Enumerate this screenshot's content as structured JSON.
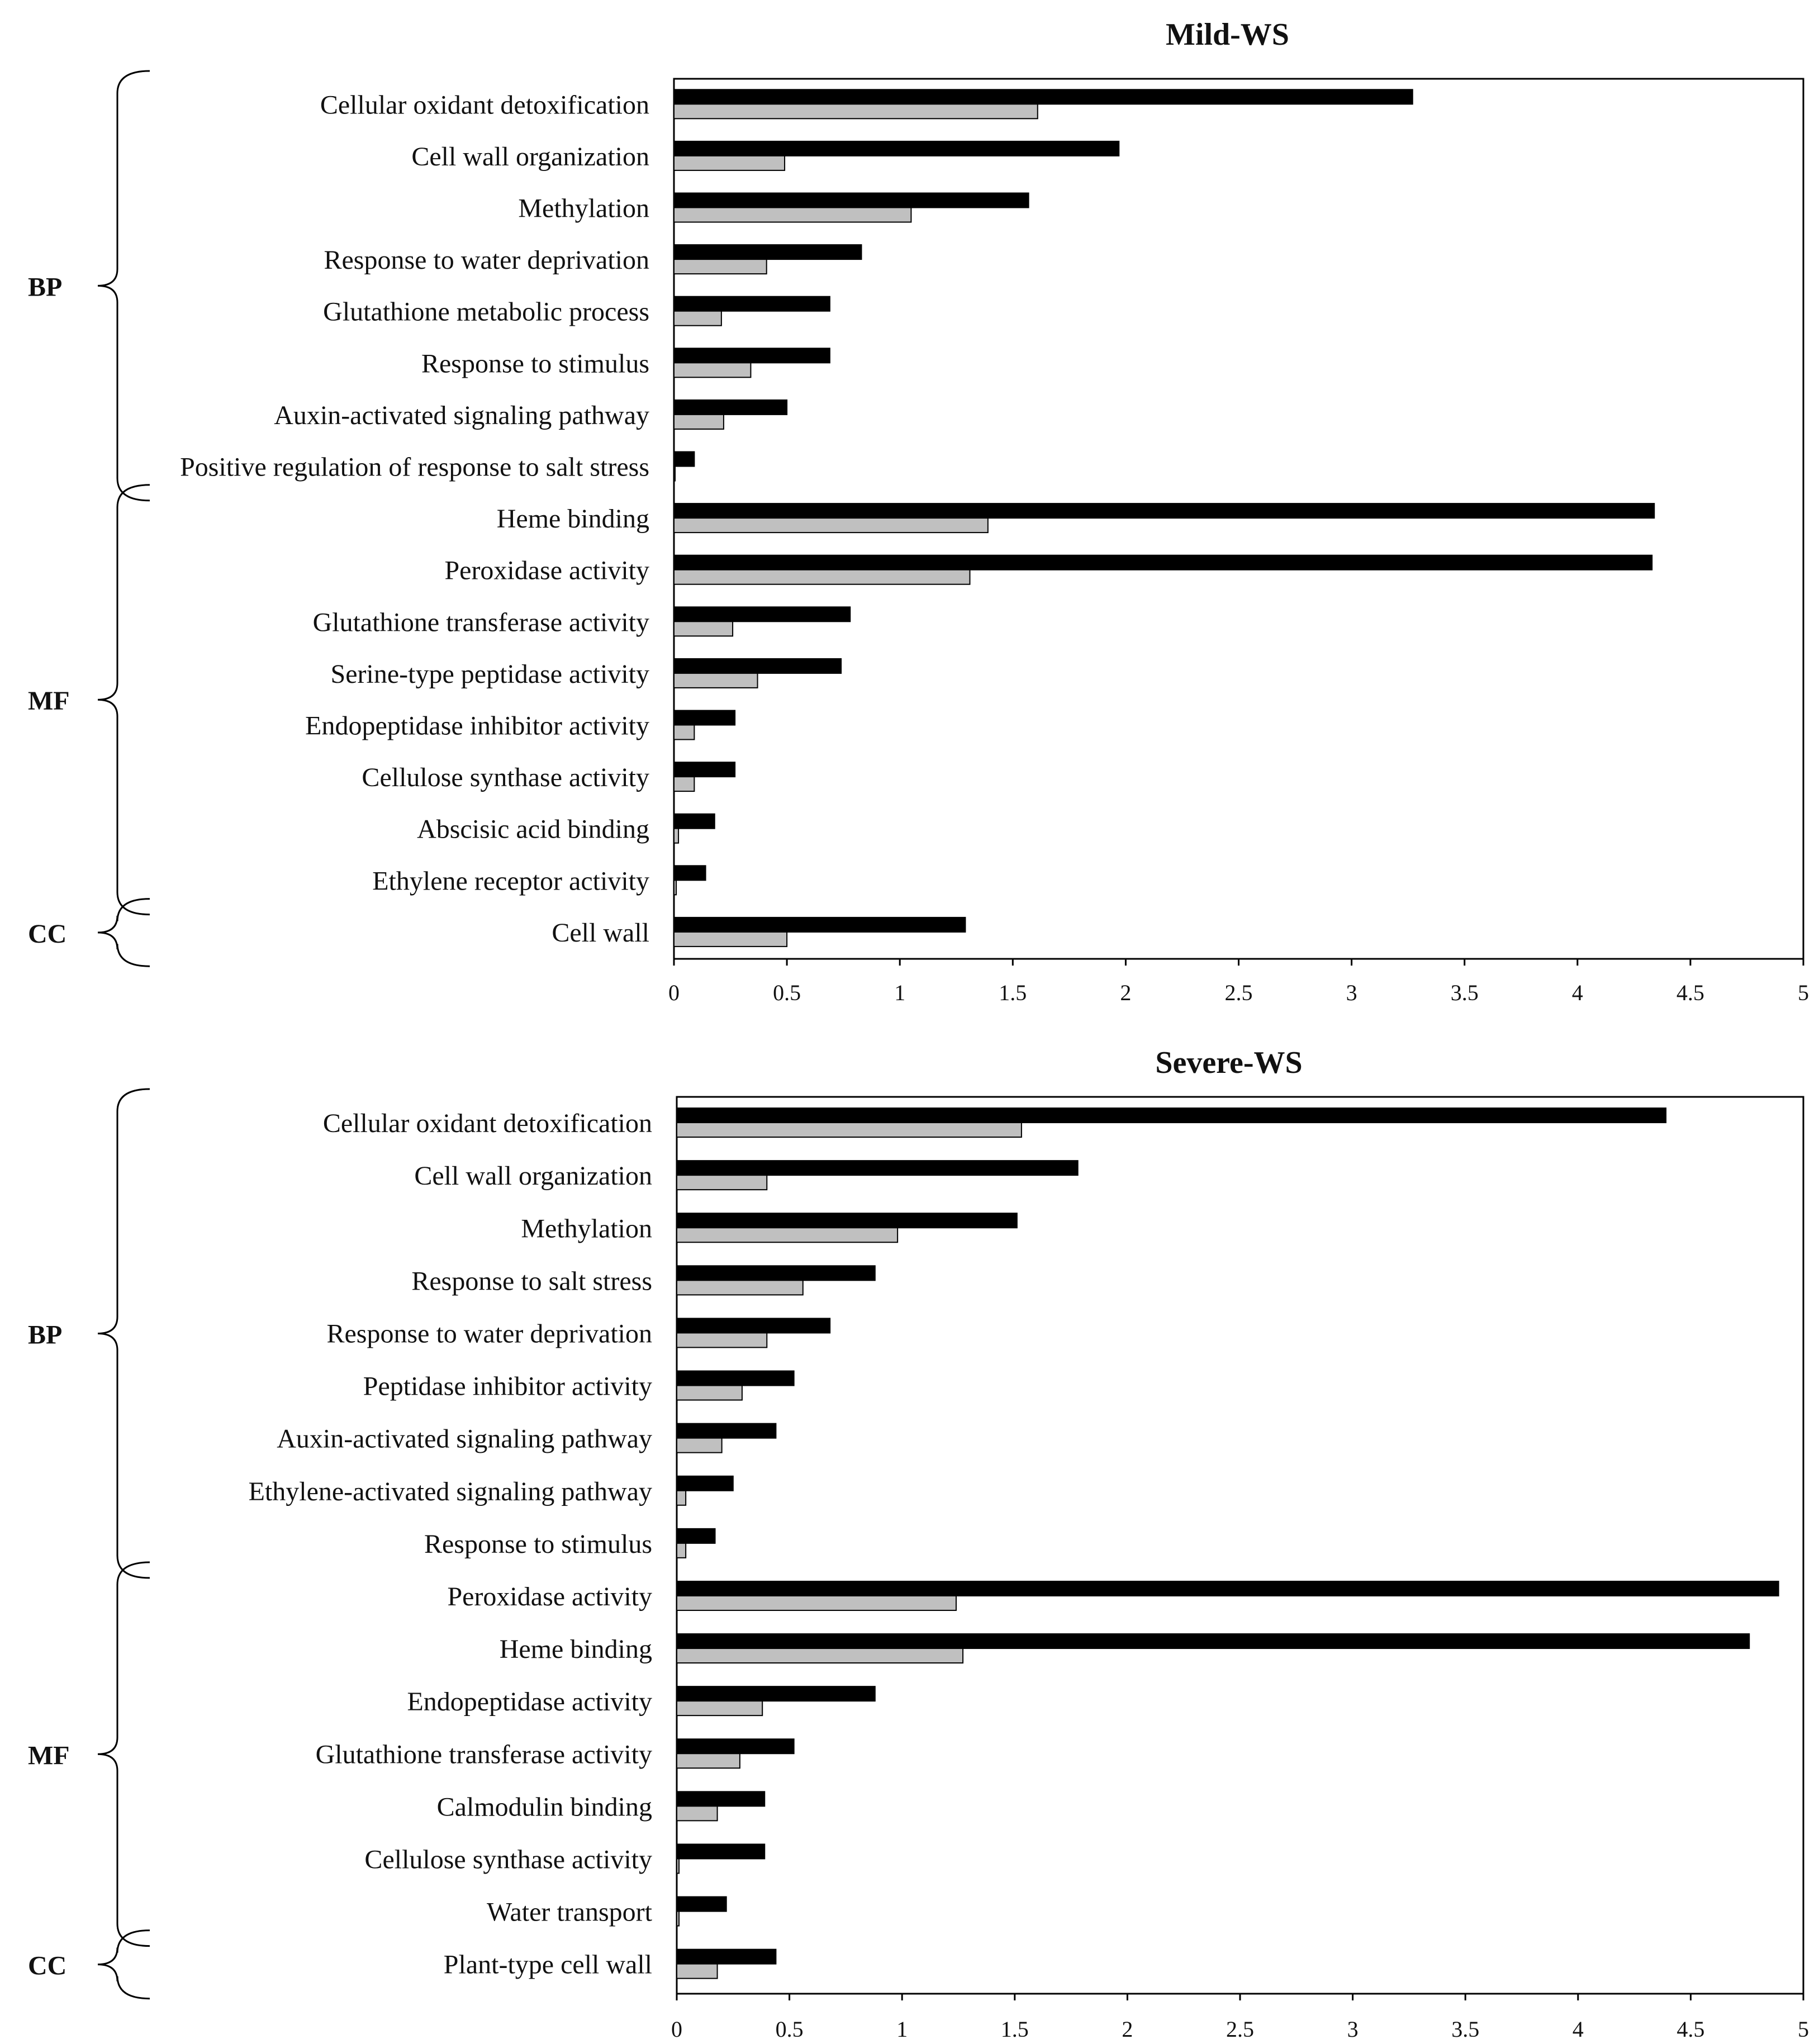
{
  "chart_data": [
    {
      "type": "bar",
      "orientation": "horizontal",
      "title": "Mild-WS",
      "xlabel": "",
      "ylabel": "",
      "xlim": [
        0,
        5
      ],
      "xticks": [
        "0",
        "0.5",
        "1",
        "1.5",
        "2",
        "2.5",
        "3",
        "3.5",
        "4",
        "4.5",
        "5"
      ],
      "series": [
        {
          "name": "series-1",
          "color": "#000000",
          "values": [
            3.27,
            1.97,
            1.57,
            0.83,
            0.69,
            0.69,
            0.5,
            0.09,
            4.34,
            4.33,
            0.78,
            0.74,
            0.27,
            0.27,
            0.18,
            0.14,
            1.29
          ]
        },
        {
          "name": "series-2",
          "color": "#c0c0c0",
          "values": [
            1.61,
            0.49,
            1.05,
            0.41,
            0.21,
            0.34,
            0.22,
            0.0,
            1.39,
            1.31,
            0.26,
            0.37,
            0.09,
            0.09,
            0.02,
            0.01,
            0.5
          ]
        }
      ],
      "categories": [
        "Cellular oxidant detoxification",
        "Cell wall organization",
        "Methylation",
        "Response to water deprivation",
        "Glutathione metabolic process",
        "Response to stimulus",
        "Auxin-activated signaling pathway",
        "Positive regulation of response to salt stress",
        "Heme binding",
        "Peroxidase activity",
        "Glutathione transferase activity",
        "Serine-type peptidase activity",
        "Endopeptidase inhibitor activity",
        "Cellulose synthase activity",
        "Abscisic acid binding",
        "Ethylene receptor activity",
        "Cell wall"
      ],
      "groups": [
        {
          "label": "BP",
          "start": 0,
          "end": 7
        },
        {
          "label": "MF",
          "start": 8,
          "end": 15
        },
        {
          "label": "CC",
          "start": 16,
          "end": 16
        }
      ]
    },
    {
      "type": "bar",
      "orientation": "horizontal",
      "title": "Severe-WS",
      "xlabel": "",
      "ylabel": "",
      "xlim": [
        0,
        5
      ],
      "xticks": [
        "0",
        "0.5",
        "1",
        "1.5",
        "2",
        "2.5",
        "3",
        "3.5",
        "4",
        "4.5",
        "5"
      ],
      "series": [
        {
          "name": "series-1",
          "color": "#000000",
          "values": [
            4.39,
            1.78,
            1.51,
            0.88,
            0.68,
            0.52,
            0.44,
            0.25,
            0.17,
            4.89,
            4.76,
            0.88,
            0.52,
            0.39,
            0.39,
            0.22,
            0.44
          ]
        },
        {
          "name": "series-2",
          "color": "#c0c0c0",
          "values": [
            1.53,
            0.4,
            0.98,
            0.56,
            0.4,
            0.29,
            0.2,
            0.04,
            0.04,
            1.24,
            1.27,
            0.38,
            0.28,
            0.18,
            0.01,
            0.01,
            0.18
          ]
        }
      ],
      "categories": [
        "Cellular oxidant detoxification",
        "Cell wall organization",
        "Methylation",
        "Response to salt stress",
        "Response to water deprivation",
        "Peptidase inhibitor activity",
        "Auxin-activated signaling pathway",
        "Ethylene-activated signaling pathway",
        "Response to stimulus",
        "Peroxidase activity",
        "Heme binding",
        "Endopeptidase activity",
        "Glutathione transferase activity",
        "Calmodulin binding",
        "Cellulose synthase activity",
        "Water transport",
        "Plant-type cell wall"
      ],
      "groups": [
        {
          "label": "BP",
          "start": 0,
          "end": 8
        },
        {
          "label": "MF",
          "start": 9,
          "end": 15
        },
        {
          "label": "CC",
          "start": 16,
          "end": 16
        }
      ]
    }
  ]
}
